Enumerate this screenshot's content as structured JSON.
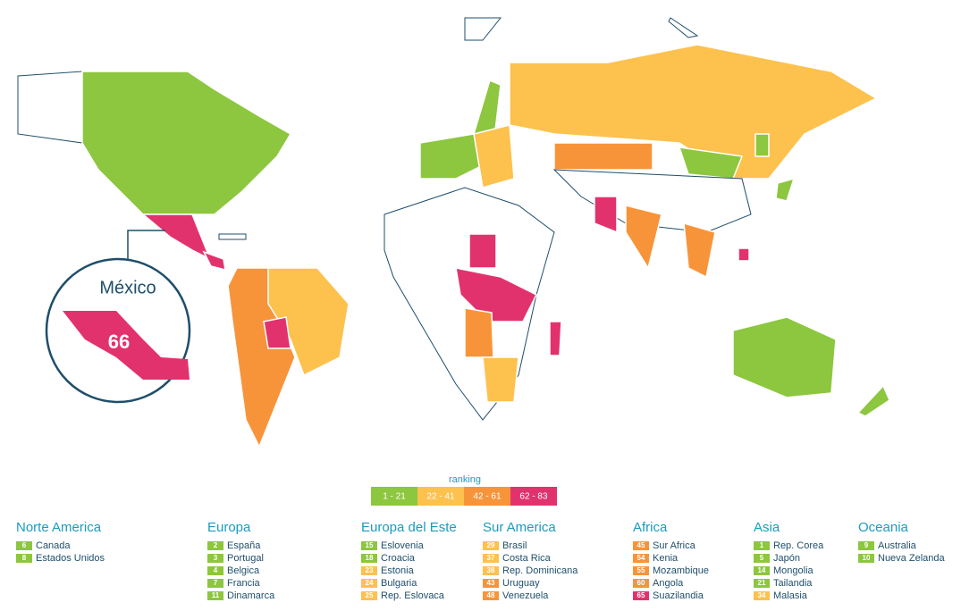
{
  "callout": {
    "country": "México",
    "rank": 66,
    "color": "#e2326e"
  },
  "legend": {
    "title": "ranking",
    "buckets": [
      {
        "label": "1 - 21",
        "color": "#8dc63f"
      },
      {
        "label": "22 - 41",
        "color": "#fdc14e"
      },
      {
        "label": "42 - 61",
        "color": "#f7943a"
      },
      {
        "label": "62 - 83",
        "color": "#e2326e"
      }
    ]
  },
  "regions": [
    {
      "name": "Norte America",
      "entries": [
        {
          "rank": 6,
          "name": "Canada",
          "color": "#8dc63f"
        },
        {
          "rank": 8,
          "name": "Estados Unidos",
          "color": "#8dc63f"
        }
      ]
    },
    {
      "name": "Europa",
      "entries": [
        {
          "rank": 2,
          "name": "España",
          "color": "#8dc63f"
        },
        {
          "rank": 3,
          "name": "Portugal",
          "color": "#8dc63f"
        },
        {
          "rank": 4,
          "name": "Belgica",
          "color": "#8dc63f"
        },
        {
          "rank": 7,
          "name": "Francia",
          "color": "#8dc63f"
        },
        {
          "rank": 11,
          "name": "Dinamarca",
          "color": "#8dc63f"
        }
      ]
    },
    {
      "name": "Europa del Este",
      "entries": [
        {
          "rank": 15,
          "name": "Eslovenia",
          "color": "#8dc63f"
        },
        {
          "rank": 18,
          "name": "Croacia",
          "color": "#8dc63f"
        },
        {
          "rank": 23,
          "name": "Estonia",
          "color": "#fdc14e"
        },
        {
          "rank": 24,
          "name": "Bulgaria",
          "color": "#fdc14e"
        },
        {
          "rank": 25,
          "name": "Rep. Eslovaca",
          "color": "#fdc14e"
        }
      ]
    },
    {
      "name": "Sur America",
      "entries": [
        {
          "rank": 29,
          "name": "Brasil",
          "color": "#fdc14e"
        },
        {
          "rank": 37,
          "name": "Costa Rica",
          "color": "#fdc14e"
        },
        {
          "rank": 38,
          "name": "Rep. Dominicana",
          "color": "#fdc14e"
        },
        {
          "rank": 43,
          "name": "Uruguay",
          "color": "#f7943a"
        },
        {
          "rank": 48,
          "name": "Venezuela",
          "color": "#f7943a"
        }
      ]
    },
    {
      "name": "Africa",
      "entries": [
        {
          "rank": 45,
          "name": "Sur Africa",
          "color": "#f7943a"
        },
        {
          "rank": 54,
          "name": "Kenia",
          "color": "#f7943a"
        },
        {
          "rank": 55,
          "name": "Mozambique",
          "color": "#f7943a"
        },
        {
          "rank": 60,
          "name": "Angola",
          "color": "#f7943a"
        },
        {
          "rank": 65,
          "name": "Suazilandia",
          "color": "#e2326e"
        }
      ]
    },
    {
      "name": "Asia",
      "entries": [
        {
          "rank": 1,
          "name": "Rep. Corea",
          "color": "#8dc63f"
        },
        {
          "rank": 5,
          "name": "Japón",
          "color": "#8dc63f"
        },
        {
          "rank": 14,
          "name": "Mongolia",
          "color": "#8dc63f"
        },
        {
          "rank": 21,
          "name": "Tailandia",
          "color": "#8dc63f"
        },
        {
          "rank": 34,
          "name": "Malasia",
          "color": "#fdc14e"
        }
      ]
    },
    {
      "name": "Oceania",
      "entries": [
        {
          "rank": 9,
          "name": "Australia",
          "color": "#8dc63f"
        },
        {
          "rank": 10,
          "name": "Nueva Zelanda",
          "color": "#8dc63f"
        }
      ]
    }
  ]
}
